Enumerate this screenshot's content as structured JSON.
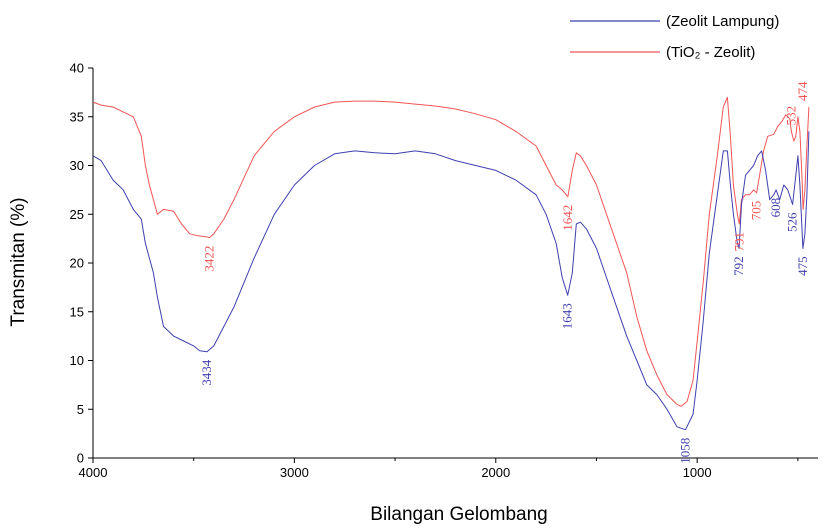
{
  "chart_data": {
    "type": "line",
    "xlabel": "Bilangan Gelombang",
    "ylabel": "Transmitan (%)",
    "xlim": [
      4000,
      400
    ],
    "ylim": [
      0,
      40
    ],
    "x_reversed": true,
    "x_ticks": [
      4000,
      3000,
      2000,
      1000
    ],
    "x_tick_labels": [
      "4000",
      "3000",
      "2000",
      "1000"
    ],
    "y_ticks": [
      0,
      5,
      10,
      15,
      20,
      25,
      30,
      35,
      40
    ],
    "y_tick_labels": [
      "0",
      "5",
      "10",
      "15",
      "20",
      "25",
      "30",
      "35",
      "40"
    ],
    "grid": false,
    "legend_position": "top-right",
    "series": [
      {
        "name": "(Zeolit Lampung)",
        "color": "#3f3fb0",
        "x": [
          4000,
          3960,
          3900,
          3850,
          3800,
          3760,
          3740,
          3720,
          3700,
          3680,
          3650,
          3600,
          3550,
          3500,
          3470,
          3434,
          3400,
          3350,
          3300,
          3200,
          3100,
          3000,
          2900,
          2800,
          2700,
          2600,
          2500,
          2400,
          2300,
          2200,
          2100,
          2000,
          1900,
          1800,
          1750,
          1700,
          1670,
          1643,
          1620,
          1600,
          1580,
          1550,
          1500,
          1450,
          1400,
          1350,
          1300,
          1250,
          1200,
          1150,
          1100,
          1058,
          1020,
          1000,
          970,
          940,
          900,
          870,
          850,
          835,
          820,
          800,
          792,
          780,
          760,
          740,
          720,
          700,
          680,
          660,
          640,
          620,
          608,
          590,
          570,
          550,
          526,
          510,
          500,
          490,
          475,
          465,
          455,
          445
        ],
        "values": [
          31,
          30.5,
          28.5,
          27.5,
          25.5,
          24.5,
          22,
          20.5,
          19,
          16.5,
          13.5,
          12.5,
          12,
          11.5,
          11,
          10.9,
          11.5,
          13.5,
          15.5,
          20.5,
          25,
          28,
          30,
          31.2,
          31.5,
          31.3,
          31.2,
          31.5,
          31.2,
          30.5,
          30,
          29.5,
          28.5,
          27,
          25,
          22,
          18.5,
          16.7,
          19,
          24,
          24.2,
          23.5,
          21.5,
          18.5,
          15.5,
          12.5,
          10,
          7.5,
          6.5,
          5,
          3.2,
          2.9,
          4.5,
          8,
          14,
          21,
          27,
          31.5,
          31.5,
          28,
          25,
          22,
          21.5,
          26,
          29,
          29.5,
          30,
          31,
          31.5,
          29.5,
          26.5,
          27,
          27.5,
          26.5,
          28,
          27.5,
          26,
          29,
          31,
          28,
          21.5,
          23,
          27,
          33.5
        ]
      },
      {
        "name": "(TiO₂ - Zeolit)",
        "color": "#f25555",
        "x": [
          4000,
          3960,
          3900,
          3850,
          3800,
          3760,
          3740,
          3720,
          3700,
          3680,
          3650,
          3600,
          3560,
          3520,
          3480,
          3440,
          3422,
          3400,
          3350,
          3300,
          3200,
          3100,
          3000,
          2900,
          2800,
          2700,
          2600,
          2500,
          2400,
          2300,
          2200,
          2100,
          2000,
          1900,
          1800,
          1750,
          1700,
          1670,
          1642,
          1620,
          1600,
          1580,
          1550,
          1500,
          1450,
          1400,
          1350,
          1300,
          1250,
          1200,
          1150,
          1100,
          1080,
          1050,
          1020,
          1000,
          970,
          940,
          900,
          870,
          850,
          835,
          820,
          800,
          791,
          780,
          760,
          740,
          720,
          705,
          690,
          670,
          650,
          620,
          600,
          580,
          560,
          540,
          532,
          520,
          510,
          500,
          490,
          480,
          474,
          465,
          455,
          445
        ],
        "values": [
          36.5,
          36.2,
          36,
          35.5,
          35,
          33,
          30,
          28,
          26.5,
          25,
          25.5,
          25.3,
          24,
          23,
          22.8,
          22.7,
          22.6,
          23,
          24.5,
          26.5,
          31,
          33.5,
          35,
          36,
          36.5,
          36.6,
          36.6,
          36.5,
          36.3,
          36.1,
          35.8,
          35.3,
          34.7,
          33.5,
          32,
          30,
          28,
          27.5,
          26.8,
          29.5,
          31.3,
          31,
          30,
          28,
          25,
          22,
          19,
          14.5,
          11,
          8.5,
          6.5,
          5.5,
          5.3,
          5.8,
          8,
          12,
          18,
          25,
          31,
          36,
          37,
          33,
          28,
          25,
          24,
          26.5,
          27,
          27,
          27.5,
          27.2,
          29,
          31.5,
          33,
          33.2,
          34,
          34.5,
          35.2,
          34.8,
          33.5,
          32.5,
          33,
          35,
          33.5,
          29,
          25.5,
          27.5,
          32,
          36
        ]
      }
    ],
    "annotations": [
      {
        "text": "3422",
        "x": 3422,
        "y": 22.6,
        "series": 1,
        "placement": "below"
      },
      {
        "text": "1642",
        "x": 1642,
        "y": 26.8,
        "series": 1,
        "placement": "below"
      },
      {
        "text": "791",
        "x": 791,
        "y": 24,
        "series": 1,
        "placement": "below"
      },
      {
        "text": "705",
        "x": 705,
        "y": 27.2,
        "series": 1,
        "placement": "below"
      },
      {
        "text": "532",
        "x": 532,
        "y": 33.5,
        "series": 1,
        "placement": "above"
      },
      {
        "text": "474",
        "x": 474,
        "y": 36,
        "series": 1,
        "placement": "above"
      },
      {
        "text": "3434",
        "x": 3434,
        "y": 10.9,
        "series": 0,
        "placement": "below"
      },
      {
        "text": "1643",
        "x": 1643,
        "y": 16.7,
        "series": 0,
        "placement": "below"
      },
      {
        "text": "1058",
        "x": 1058,
        "y": 2.9,
        "series": 0,
        "placement": "below"
      },
      {
        "text": "792",
        "x": 792,
        "y": 21.5,
        "series": 0,
        "placement": "below"
      },
      {
        "text": "608",
        "x": 608,
        "y": 27.5,
        "series": 0,
        "placement": "below"
      },
      {
        "text": "526",
        "x": 526,
        "y": 26,
        "series": 0,
        "placement": "below"
      },
      {
        "text": "475",
        "x": 475,
        "y": 21.5,
        "series": 0,
        "placement": "below"
      }
    ]
  }
}
